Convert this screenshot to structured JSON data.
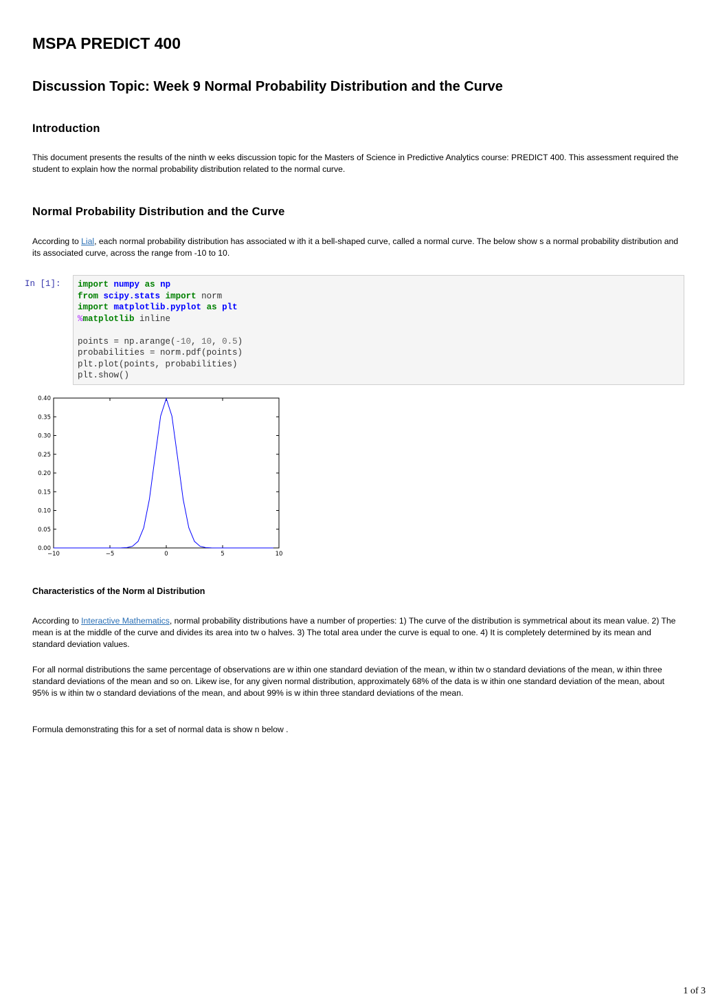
{
  "document": {
    "title": "MSPA PREDICT 400",
    "subtitle": "Discussion Topic: Week 9 Normal Probability Distribution and the Curve",
    "intro_heading": "Introduction",
    "intro_text": "This document presents the results of the ninth w eeks discussion topic for the Masters of Science in Predictive Analytics course: PREDICT 400. This assessment required the student to explain how  the normal probability distribution related to the normal curve.",
    "section_heading": "Normal Probability Distribution and the Curve",
    "section_p_prefix": "According to ",
    "section_link": "Lial",
    "section_p_suffix": ", each normal probability distribution has associated w ith it a bell-shaped curve, called a normal curve. The below  show s a normal probability distribution and its associated curve, across the range from -10 to 10.",
    "characteristics_heading": "Characteristics of the Norm al Distribution",
    "char_p1_prefix": "According to ",
    "char_link": "Interactive Mathematics",
    "char_p1_suffix": ", normal probability distributions have a number of properties: 1) The curve of the distribution is symmetrical about its mean value. 2) The mean is at the middle of the curve and divides its area into tw o halves. 3) The total area under the curve is equal to one. 4) It is completely determined by its mean and standard deviation values.",
    "char_p2": "For all normal distributions the same percentage of observations are w ithin one standard deviation of the mean, w ithin tw o standard deviations of the mean, w ithin three standard deviations of the mean and so on. Likew ise, for any given normal distribution, approximately 68% of the data is w ithin one standard deviation of the mean, about 95% is w ithin tw o standard deviations of the mean, and about 99% is w ithin three standard deviations of the mean.",
    "char_p3": "Formula demonstrating this for a set of normal data is show n below .",
    "page_number": "1 of 3"
  },
  "code_cell": {
    "prompt": "In [1]:",
    "line_blank": ""
  },
  "chart_data": {
    "type": "line",
    "title": "",
    "xlabel": "",
    "ylabel": "",
    "xlim": [
      -10,
      10
    ],
    "ylim": [
      0,
      0.4
    ],
    "xticks": [
      "−10",
      "−5",
      "0",
      "5",
      "10"
    ],
    "xtick_values": [
      -10,
      -5,
      0,
      5,
      10
    ],
    "yticks": [
      "0.00",
      "0.05",
      "0.10",
      "0.15",
      "0.20",
      "0.25",
      "0.30",
      "0.35",
      "0.40"
    ],
    "ytick_values": [
      0,
      0.05,
      0.1,
      0.15,
      0.2,
      0.25,
      0.3,
      0.35,
      0.4
    ],
    "grid": false,
    "series": [
      {
        "color": "#0000ff",
        "x": [
          -10,
          -9.5,
          -9,
          -8.5,
          -8,
          -7.5,
          -7,
          -6.5,
          -6,
          -5.5,
          -5,
          -4.5,
          -4,
          -3.5,
          -3,
          -2.5,
          -2,
          -1.5,
          -1,
          -0.5,
          0,
          0.5,
          1,
          1.5,
          2,
          2.5,
          3,
          3.5,
          4,
          4.5,
          5,
          5.5,
          6,
          6.5,
          7,
          7.5,
          8,
          8.5,
          9,
          9.5
        ],
        "y": [
          0,
          0,
          0,
          0,
          0,
          0,
          0,
          0,
          0,
          0,
          1.5e-06,
          1.6e-05,
          0.000134,
          0.000873,
          0.004432,
          0.017528,
          0.053991,
          0.129518,
          0.241971,
          0.352065,
          0.398942,
          0.352065,
          0.241971,
          0.129518,
          0.053991,
          0.017528,
          0.004432,
          0.000873,
          0.000134,
          1.6e-05,
          1.5e-06,
          0,
          0,
          0,
          0,
          0,
          0,
          0,
          0,
          0
        ]
      }
    ]
  }
}
